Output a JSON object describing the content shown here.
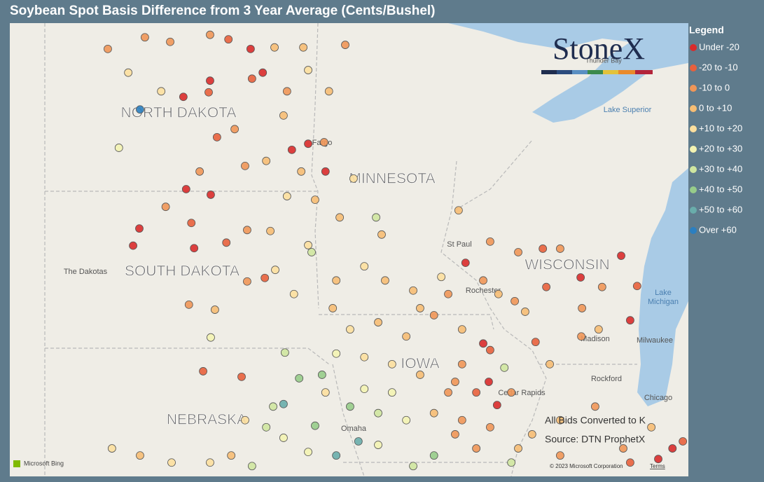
{
  "map_data": {
    "title": "Soybean Spot Basis Difference from 3 Year Average (Cents/Bushel)",
    "legend_title": "Legend",
    "legend": [
      {
        "label": "Under -20",
        "color": "#d92b2b"
      },
      {
        "label": "-20 to -10",
        "color": "#e8603c"
      },
      {
        "label": "-10 to 0",
        "color": "#f09658"
      },
      {
        "label": "0 to +10",
        "color": "#f6bd74"
      },
      {
        "label": "+10 to +20",
        "color": "#fcdf9e"
      },
      {
        "label": "+20 to +30",
        "color": "#f3f3b2"
      },
      {
        "label": "+30 to +40",
        "color": "#cfe6a0"
      },
      {
        "label": "+40 to +50",
        "color": "#97cc8a"
      },
      {
        "label": "+50 to +60",
        "color": "#69adab"
      },
      {
        "label": "Over +60",
        "color": "#2b7fc0"
      }
    ],
    "logo": "StoneX",
    "states": [
      "NORTH DAKOTA",
      "SOUTH DAKOTA",
      "MINNESOTA",
      "WISCONSIN",
      "NEBRASKA",
      "IOWA"
    ],
    "places": [
      "The Dakotas",
      "Lake Superior",
      "Lake",
      "Michigan",
      "Thunder Bay"
    ],
    "cities": [
      "Fargo",
      "St Paul",
      "Rochester",
      "Madison",
      "Milwaukee",
      "Rockford",
      "Chicago",
      "Omaha",
      "Cedar Rapids"
    ],
    "notes": [
      "All Bids Converted to K",
      "Source: DTN ProphetX"
    ],
    "attribution": {
      "bing": "Microsoft Bing",
      "copyright": "© 2023 Microsoft Corporation",
      "terms": "Terms"
    },
    "points": [
      [
        -102.67,
        48.76,
        2
      ],
      [
        -101.6,
        48.99,
        2
      ],
      [
        -100.87,
        48.9,
        2
      ],
      [
        -99.72,
        49.04,
        2
      ],
      [
        -99.19,
        48.95,
        1
      ],
      [
        -98.55,
        48.76,
        0
      ],
      [
        -97.86,
        48.79,
        3
      ],
      [
        -97.03,
        48.79,
        3
      ],
      [
        -95.82,
        48.84,
        2
      ],
      [
        -102.08,
        48.29,
        4
      ],
      [
        -100.49,
        47.81,
        0
      ],
      [
        -99.76,
        47.9,
        1
      ],
      [
        -101.74,
        47.56,
        9
      ],
      [
        -99.01,
        47.17,
        2
      ],
      [
        -99.52,
        47.01,
        1
      ],
      [
        -97.36,
        46.76,
        0
      ],
      [
        -96.89,
        46.88,
        0
      ],
      [
        -96.43,
        46.91,
        2
      ],
      [
        -97.6,
        47.44,
        3
      ],
      [
        -98.51,
        48.17,
        1
      ],
      [
        -102.35,
        46.8,
        5
      ],
      [
        -101.13,
        47.92,
        4
      ],
      [
        -100.02,
        46.33,
        2
      ],
      [
        -98.71,
        46.44,
        2
      ],
      [
        -97.09,
        46.33,
        3
      ],
      [
        -96.39,
        46.33,
        0
      ],
      [
        -100.41,
        45.98,
        0
      ],
      [
        -99.7,
        45.87,
        0
      ],
      [
        -101.0,
        45.63,
        2
      ],
      [
        -101.76,
        45.2,
        0
      ],
      [
        -101.94,
        44.86,
        0
      ],
      [
        -100.18,
        44.81,
        0
      ],
      [
        -100.26,
        45.31,
        1
      ],
      [
        -99.25,
        44.92,
        1
      ],
      [
        -98.65,
        45.17,
        2
      ],
      [
        -97.98,
        45.15,
        3
      ],
      [
        -98.14,
        44.22,
        1
      ],
      [
        -98.65,
        44.15,
        2
      ],
      [
        -100.33,
        43.69,
        2
      ],
      [
        -99.58,
        43.59,
        3
      ],
      [
        -99.92,
        42.37,
        1
      ],
      [
        -98.81,
        42.26,
        1
      ],
      [
        -99.7,
        43.04,
        5
      ],
      [
        -97.56,
        42.74,
        6
      ],
      [
        -97.84,
        44.38,
        4
      ],
      [
        -96.89,
        44.87,
        4
      ],
      [
        -97.3,
        43.9,
        4
      ],
      [
        -96.69,
        45.77,
        3
      ],
      [
        -95.58,
        46.19,
        4
      ],
      [
        -94.93,
        45.42,
        6
      ],
      [
        -95.98,
        45.42,
        3
      ],
      [
        -94.77,
        45.08,
        3
      ],
      [
        -92.55,
        45.56,
        3
      ],
      [
        -91.64,
        44.94,
        2
      ],
      [
        -92.35,
        44.52,
        0
      ],
      [
        -93.05,
        44.24,
        4
      ],
      [
        -93.86,
        43.97,
        3
      ],
      [
        -95.27,
        44.45,
        4
      ],
      [
        -96.08,
        44.17,
        3
      ],
      [
        -96.79,
        44.73,
        6
      ],
      [
        -90.83,
        44.73,
        2
      ],
      [
        -90.12,
        44.8,
        1
      ],
      [
        -89.62,
        44.8,
        2
      ],
      [
        -87.86,
        44.66,
        0
      ],
      [
        -89.03,
        44.23,
        0
      ],
      [
        -88.41,
        44.04,
        2
      ],
      [
        -87.4,
        44.06,
        1
      ],
      [
        -87.6,
        43.38,
        0
      ],
      [
        -88.51,
        43.2,
        3
      ],
      [
        -89.01,
        43.06,
        2
      ],
      [
        -90.33,
        42.95,
        1
      ],
      [
        -89.92,
        42.51,
        3
      ],
      [
        -90.63,
        43.55,
        3
      ],
      [
        -88.99,
        43.62,
        2
      ],
      [
        -91.4,
        43.9,
        3
      ],
      [
        -96.18,
        43.62,
        3
      ],
      [
        -95.68,
        43.2,
        4
      ],
      [
        -94.87,
        43.34,
        3
      ],
      [
        -94.06,
        43.06,
        3
      ],
      [
        -93.26,
        43.48,
        2
      ],
      [
        -92.45,
        43.2,
        3
      ],
      [
        -91.84,
        42.92,
        0
      ],
      [
        -91.64,
        42.79,
        1
      ],
      [
        -91.23,
        42.44,
        6
      ],
      [
        -91.68,
        42.16,
        0
      ],
      [
        -91.44,
        41.7,
        0
      ],
      [
        -91.03,
        41.95,
        2
      ],
      [
        -92.65,
        42.16,
        2
      ],
      [
        -93.66,
        42.3,
        3
      ],
      [
        -94.47,
        42.51,
        4
      ],
      [
        -95.27,
        42.65,
        4
      ],
      [
        -96.08,
        42.72,
        5
      ],
      [
        -96.49,
        42.3,
        7
      ],
      [
        -97.15,
        42.23,
        7
      ],
      [
        -96.39,
        41.95,
        4
      ],
      [
        -95.68,
        41.67,
        7
      ],
      [
        -94.87,
        41.54,
        6
      ],
      [
        -94.06,
        41.4,
        5
      ],
      [
        -93.26,
        41.54,
        3
      ],
      [
        -92.45,
        41.4,
        2
      ],
      [
        -91.64,
        41.26,
        2
      ],
      [
        -90.83,
        40.84,
        3
      ],
      [
        -93.26,
        40.7,
        7
      ],
      [
        -93.86,
        40.49,
        6
      ],
      [
        -97.6,
        41.72,
        8
      ],
      [
        -97.9,
        41.67,
        6
      ],
      [
        -98.1,
        41.26,
        6
      ],
      [
        -97.6,
        41.05,
        5
      ],
      [
        -96.69,
        41.29,
        7
      ],
      [
        -95.44,
        40.98,
        8
      ],
      [
        -96.89,
        40.77,
        5
      ],
      [
        -96.08,
        40.7,
        8
      ],
      [
        -98.71,
        41.4,
        4
      ],
      [
        -99.11,
        40.7,
        3
      ],
      [
        -99.72,
        40.56,
        4
      ],
      [
        -102.55,
        40.84,
        4
      ],
      [
        -101.74,
        40.7,
        3
      ],
      [
        -100.83,
        40.56,
        4
      ],
      [
        -98.51,
        40.49,
        6
      ],
      [
        -94.87,
        40.91,
        5
      ],
      [
        -89.62,
        41.4,
        3
      ],
      [
        -88.61,
        41.67,
        2
      ],
      [
        -87.8,
        40.84,
        2
      ],
      [
        -86.99,
        41.26,
        3
      ],
      [
        -86.38,
        40.84,
        0
      ],
      [
        -86.08,
        40.98,
        1
      ],
      [
        -89.62,
        40.7,
        2
      ],
      [
        -90.43,
        41.12,
        3
      ],
      [
        -87.6,
        40.56,
        1
      ],
      [
        -86.79,
        40.63,
        0
      ],
      [
        -91.03,
        40.56,
        6
      ],
      [
        -92.65,
        41.12,
        2
      ],
      [
        -92.04,
        40.84,
        2
      ],
      [
        -99.72,
        48.13,
        0
      ],
      [
        -98.2,
        48.29,
        0
      ],
      [
        -97.5,
        47.92,
        2
      ],
      [
        -96.89,
        48.34,
        4
      ],
      [
        -96.29,
        47.92,
        3
      ],
      [
        -97.5,
        45.84,
        4
      ],
      [
        -98.1,
        46.54,
        3
      ],
      [
        -94.67,
        44.17,
        3
      ],
      [
        -93.66,
        43.62,
        3
      ],
      [
        -92.85,
        43.9,
        2
      ],
      [
        -91.84,
        44.17,
        2
      ],
      [
        -90.93,
        43.76,
        2
      ],
      [
        -90.02,
        44.04,
        1
      ],
      [
        -92.45,
        42.51,
        2
      ],
      [
        -92.85,
        41.95,
        2
      ],
      [
        -92.04,
        41.95,
        1
      ],
      [
        -94.47,
        41.95,
        5
      ],
      [
        -95.27,
        42.02,
        5
      ]
    ]
  }
}
